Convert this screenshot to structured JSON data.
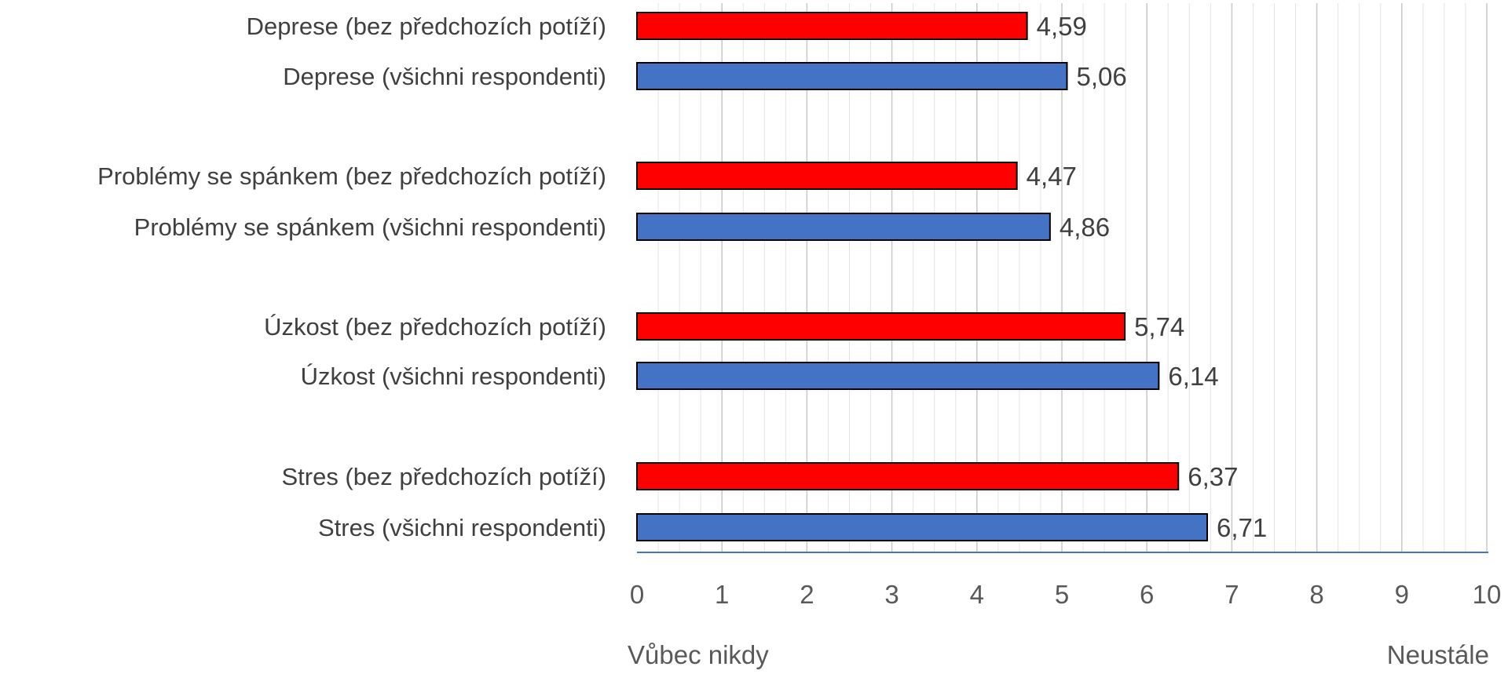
{
  "chart_data": {
    "type": "bar",
    "orientation": "horizontal",
    "categories": [
      "Deprese (bez předchozích potíží)",
      "Deprese (všichni respondenti)",
      "Problémy se spánkem (bez předchozích potíží)",
      "Problémy se spánkem (všichni respondenti)",
      "Úzkost (bez předchozích potíží)",
      "Úzkost (všichni respondenti)",
      "Stres (bez předchozích potíží)",
      "Stres (všichni respondenti)"
    ],
    "values": [
      4.59,
      5.06,
      4.47,
      4.86,
      5.74,
      6.14,
      6.37,
      6.71
    ],
    "value_labels": [
      "4,59",
      "5,06",
      "4,47",
      "4,86",
      "5,74",
      "6,14",
      "6,37",
      "6,71"
    ],
    "bar_colors": [
      "#ff0000",
      "#4472c4",
      "#ff0000",
      "#4472c4",
      "#ff0000",
      "#4472c4",
      "#ff0000",
      "#4472c4"
    ],
    "xlim": [
      0,
      10
    ],
    "x_ticks": [
      "0",
      "1",
      "2",
      "3",
      "4",
      "5",
      "6",
      "7",
      "8",
      "9",
      "10"
    ],
    "x_end_labels": {
      "left": "Vůbec nikdy",
      "right": "Neustále"
    },
    "grid": true,
    "axis_color": "#4472c4",
    "grid_color": "#d9d9d9"
  }
}
